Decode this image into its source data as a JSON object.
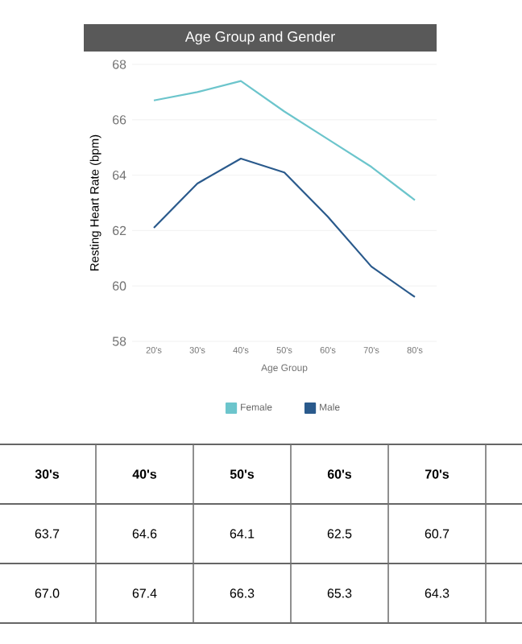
{
  "chart_data": {
    "type": "line",
    "title": "Age Group and Gender",
    "xlabel": "Age Group",
    "ylabel": "Resting Heart Rate (bpm)",
    "categories": [
      "20's",
      "30's",
      "40's",
      "50's",
      "60's",
      "70's",
      "80's"
    ],
    "series": [
      {
        "name": "Female",
        "color": "#6cc5cc",
        "values": [
          66.7,
          67.0,
          67.4,
          66.3,
          65.3,
          64.3,
          63.1
        ]
      },
      {
        "name": "Male",
        "color": "#2a5a8c",
        "values": [
          62.1,
          63.7,
          64.6,
          64.1,
          62.5,
          60.7,
          59.6
        ]
      }
    ],
    "annotations": [
      "63.7",
      "64.6",
      "64.1",
      "62.5",
      "60.7",
      "67.0",
      "67.4",
      "66.3",
      "65.3",
      "64.3"
    ],
    "ylim": [
      58,
      68
    ],
    "yticks": [
      58,
      60,
      62,
      64,
      66,
      68
    ],
    "grid": "y",
    "legend": "bottom",
    "marker": "none",
    "line_style": "solid"
  }
}
